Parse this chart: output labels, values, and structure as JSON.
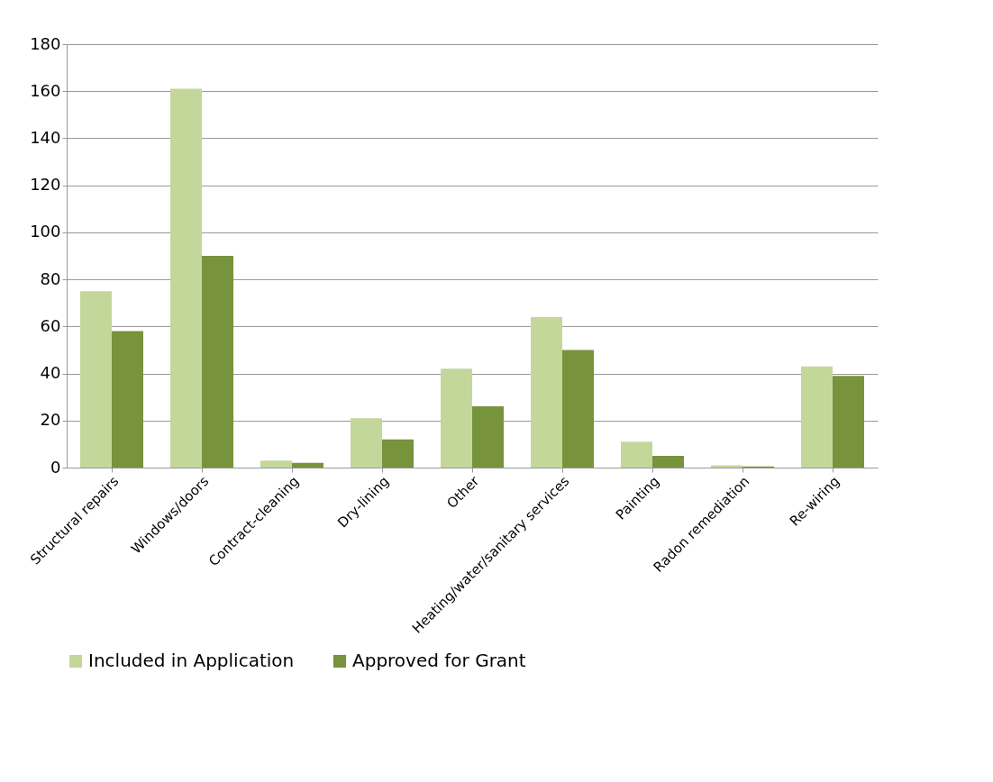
{
  "chart_data": {
    "type": "bar",
    "categories": [
      "Structural repairs",
      "Windows/doors",
      "Contract-cleaning",
      "Dry-lining",
      "Other",
      "Heating/water/sanitary services",
      "Painting",
      "Radon remediation",
      "Re-wiring"
    ],
    "series": [
      {
        "name": "Included in Application",
        "color": "#c4d79b",
        "values": [
          75,
          161,
          3,
          21,
          42,
          64,
          11,
          1,
          43
        ]
      },
      {
        "name": "Approved for Grant",
        "color": "#77933c",
        "values": [
          58,
          90,
          2,
          12,
          26,
          50,
          5,
          0.5,
          39
        ]
      }
    ],
    "ylim": [
      0,
      180
    ],
    "yticks": [
      0,
      20,
      40,
      60,
      80,
      100,
      120,
      140,
      160,
      180
    ],
    "grid": "y",
    "legend": "bottom"
  }
}
